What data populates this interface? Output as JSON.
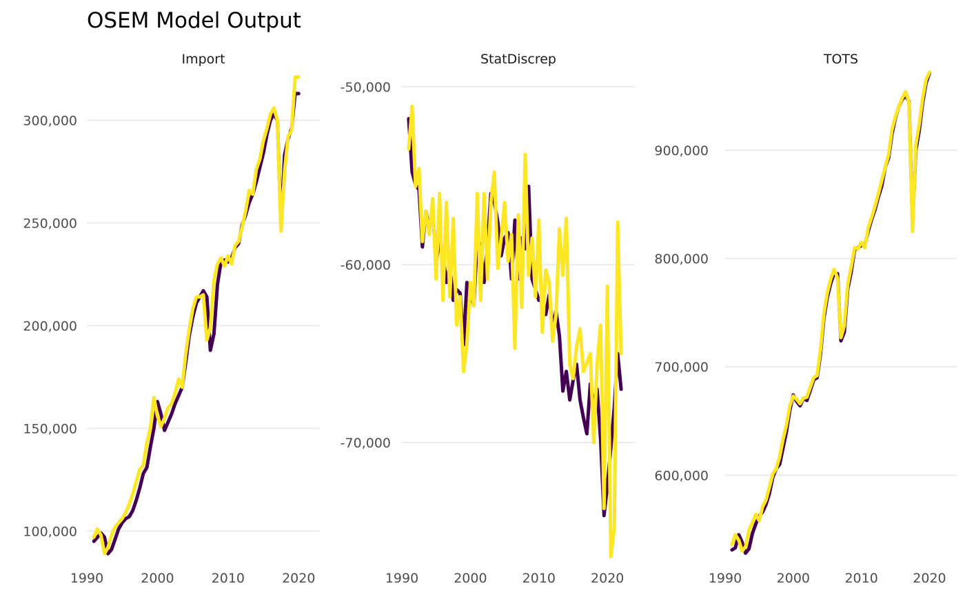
{
  "title": "OSEM Model Output",
  "colors": {
    "actual": "#440154",
    "fitted": "#fde725",
    "grid": "#ebebeb",
    "tick_text": "#4d4d4d"
  },
  "chart_data": [
    {
      "type": "line",
      "facet": "Import",
      "xlim": [
        1990,
        2023
      ],
      "ylim": [
        85000,
        325000
      ],
      "x_ticks": [
        1990,
        2000,
        2010,
        2020
      ],
      "x_tick_labels": [
        "1990",
        "2000",
        "2010",
        "2020"
      ],
      "y_ticks": [
        100000,
        150000,
        200000,
        250000,
        300000
      ],
      "y_tick_labels": [
        "100,000",
        "150,000",
        "200,000",
        "250,000",
        "300,000"
      ],
      "grid": true,
      "legend": "none",
      "x": [
        1991.0,
        1991.5,
        1992.0,
        1992.5,
        1993.0,
        1993.5,
        1994.0,
        1994.5,
        1995.0,
        1995.5,
        1996.0,
        1996.5,
        1997.0,
        1997.5,
        1998.0,
        1998.5,
        1999.0,
        1999.5,
        2000.0,
        2000.5,
        2001.0,
        2001.5,
        2002.0,
        2002.5,
        2003.0,
        2003.5,
        2004.0,
        2004.5,
        2005.0,
        2005.5,
        2006.0,
        2006.5,
        2007.0,
        2007.5,
        2008.0,
        2008.5,
        2009.0,
        2009.5,
        2010.0,
        2010.5,
        2011.0,
        2011.5,
        2012.0,
        2012.5,
        2013.0,
        2013.5,
        2014.0,
        2014.5,
        2015.0,
        2015.5,
        2016.0,
        2016.5,
        2017.0,
        2017.5,
        2018.0,
        2018.5,
        2019.0,
        2019.5,
        2020.0,
        2020.5,
        2021.0,
        2021.5,
        2022.0
      ],
      "series": [
        {
          "name": "",
          "color": "#440154",
          "values": [
            95000,
            97000,
            99000,
            97000,
            89000,
            91000,
            96000,
            101000,
            104000,
            106000,
            107000,
            110000,
            115000,
            121000,
            128000,
            131000,
            141000,
            150000,
            163000,
            157000,
            149000,
            153000,
            157000,
            162000,
            166000,
            170000,
            182000,
            195000,
            204000,
            211000,
            214000,
            217000,
            214000,
            188000,
            196000,
            220000,
            231000,
            232000,
            231000,
            233000,
            238000,
            240000,
            249000,
            254000,
            260000,
            264000,
            270000,
            277000,
            284000,
            293000,
            300000,
            303000,
            300000,
            248000,
            283000,
            291000,
            296000,
            313000,
            313000,
            null,
            null,
            null,
            null
          ]
        },
        {
          "name": "",
          "color": "#fde725",
          "values": [
            97000,
            101000,
            98000,
            89000,
            92000,
            98000,
            102000,
            104000,
            106000,
            109000,
            113000,
            118000,
            124000,
            130000,
            132000,
            143000,
            150000,
            165000,
            156000,
            151000,
            155000,
            160000,
            162000,
            167000,
            174000,
            170000,
            186000,
            198000,
            208000,
            214000,
            214000,
            215000,
            193000,
            199000,
            222000,
            230000,
            233000,
            229000,
            234000,
            230000,
            239000,
            241000,
            248000,
            256000,
            266000,
            264000,
            276000,
            281000,
            290000,
            296000,
            303000,
            306000,
            300000,
            246000,
            275000,
            292000,
            295000,
            321000,
            321000,
            null,
            null,
            null,
            null
          ]
        }
      ]
    },
    {
      "type": "line",
      "facet": "StatDiscrep",
      "xlim": [
        1990,
        2024
      ],
      "ylim": [
        -76700,
        -49000
      ],
      "x_ticks": [
        1990,
        2000,
        2010,
        2020
      ],
      "x_tick_labels": [
        "1990",
        "2000",
        "2010",
        "2020"
      ],
      "y_ticks": [
        -50000,
        -60000,
        -70000
      ],
      "y_tick_labels": [
        "-50,000",
        "-60,000",
        "-70,000"
      ],
      "grid": true,
      "legend": "none",
      "x": [
        1991.0,
        1991.5,
        1992.0,
        1992.5,
        1993.0,
        1993.5,
        1994.0,
        1994.5,
        1995.0,
        1995.5,
        1996.0,
        1996.5,
        1997.0,
        1997.5,
        1998.0,
        1998.5,
        1999.0,
        1999.5,
        2000.0,
        2000.5,
        2001.0,
        2001.5,
        2002.0,
        2002.5,
        2003.0,
        2003.5,
        2004.0,
        2004.5,
        2005.0,
        2005.5,
        2006.0,
        2006.5,
        2007.0,
        2007.5,
        2008.0,
        2008.5,
        2009.0,
        2009.5,
        2010.0,
        2010.5,
        2011.0,
        2011.5,
        2012.0,
        2012.5,
        2013.0,
        2013.5,
        2014.0,
        2014.5,
        2015.0,
        2015.5,
        2016.0,
        2016.5,
        2017.0,
        2017.5,
        2018.0,
        2018.5,
        2019.0,
        2019.5,
        2020.0,
        2020.5,
        2021.0,
        2021.5,
        2022.0
      ],
      "series": [
        {
          "name": "",
          "color": "#440154",
          "values": [
            -51800,
            -54800,
            -55500,
            -55800,
            -59000,
            -57000,
            -58000,
            -56800,
            -60000,
            -58500,
            -59500,
            -61000,
            -60000,
            -62000,
            -61400,
            -61600,
            -64500,
            -61000,
            -61500,
            -62300,
            -58500,
            -59000,
            -61000,
            -58800,
            -56000,
            -56500,
            -57600,
            -59500,
            -58500,
            -58200,
            -60800,
            -57500,
            -60800,
            -58500,
            -59100,
            -55600,
            -60800,
            -61400,
            -62000,
            -61800,
            -62800,
            -61700,
            -63500,
            -62600,
            -64000,
            -67100,
            -66000,
            -67600,
            -66500,
            -65600,
            -67600,
            -68600,
            -69500,
            -66700,
            -67800,
            -67000,
            -69800,
            -74100,
            -72400,
            -70300,
            -68000,
            -65000,
            -67000
          ]
        },
        {
          "name": "",
          "color": "#fde725",
          "values": [
            -53500,
            -51100,
            -55600,
            -54600,
            -58700,
            -57000,
            -58300,
            -56300,
            -60800,
            -56000,
            -62000,
            -56500,
            -61800,
            -57400,
            -63400,
            -61800,
            -66000,
            -64500,
            -61000,
            -62300,
            -56000,
            -62000,
            -56000,
            -60800,
            -56500,
            -54800,
            -60200,
            -58500,
            -56500,
            -59800,
            -58300,
            -64700,
            -57200,
            -62400,
            -53800,
            -60600,
            -58500,
            -61800,
            -57500,
            -63800,
            -60300,
            -61000,
            -64300,
            -62800,
            -58000,
            -60600,
            -57400,
            -65600,
            -66400,
            -64600,
            -63600,
            -66000,
            -65500,
            -65000,
            -70000,
            -65600,
            -63400,
            -73700,
            -61200,
            -76400,
            -74800,
            -57600,
            -65000
          ]
        }
      ]
    },
    {
      "type": "line",
      "facet": "TOTS",
      "xlim": [
        1990,
        2024
      ],
      "ylim": [
        520000,
        975000
      ],
      "x_ticks": [
        1990,
        2000,
        2010,
        2020
      ],
      "x_tick_labels": [
        "1990",
        "2000",
        "2010",
        "2020"
      ],
      "y_ticks": [
        600000,
        700000,
        800000,
        900000
      ],
      "y_tick_labels": [
        "600,000",
        "700,000",
        "800,000",
        "900,000"
      ],
      "grid": true,
      "legend": "none",
      "x": [
        1991.0,
        1991.5,
        1992.0,
        1992.5,
        1993.0,
        1993.5,
        1994.0,
        1994.5,
        1995.0,
        1995.5,
        1996.0,
        1996.5,
        1997.0,
        1997.5,
        1998.0,
        1998.5,
        1999.0,
        1999.5,
        2000.0,
        2000.5,
        2001.0,
        2001.5,
        2002.0,
        2002.5,
        2003.0,
        2003.5,
        2004.0,
        2004.5,
        2005.0,
        2005.5,
        2006.0,
        2006.5,
        2007.0,
        2007.5,
        2008.0,
        2008.5,
        2009.0,
        2009.5,
        2010.0,
        2010.5,
        2011.0,
        2011.5,
        2012.0,
        2012.5,
        2013.0,
        2013.5,
        2014.0,
        2014.5,
        2015.0,
        2015.5,
        2016.0,
        2016.5,
        2017.0,
        2017.5,
        2018.0,
        2018.5,
        2019.0,
        2019.5,
        2020.0,
        2020.5,
        2021.0,
        2021.5,
        2022.0
      ],
      "series": [
        {
          "name": "",
          "color": "#440154",
          "values": [
            531000,
            533000,
            545000,
            538000,
            528000,
            532000,
            546000,
            555000,
            562000,
            566000,
            573000,
            583000,
            598000,
            606000,
            610000,
            625000,
            640000,
            660000,
            674000,
            668000,
            664000,
            671000,
            669000,
            678000,
            688000,
            690000,
            712000,
            745000,
            764000,
            777000,
            786000,
            786000,
            724000,
            732000,
            772000,
            787000,
            808000,
            810000,
            812000,
            812000,
            825000,
            836000,
            845000,
            857000,
            867000,
            884000,
            893000,
            915000,
            930000,
            940000,
            947000,
            950000,
            945000,
            830000,
            900000,
            918000,
            944000,
            962000,
            971000,
            null,
            null,
            null,
            null
          ]
        },
        {
          "name": "",
          "color": "#fde725",
          "values": [
            536000,
            545000,
            540000,
            530000,
            534000,
            549000,
            556000,
            564000,
            558000,
            571000,
            577000,
            589000,
            601000,
            606000,
            617000,
            633000,
            646000,
            664000,
            673000,
            670000,
            666000,
            671000,
            672000,
            681000,
            690000,
            692000,
            716000,
            749000,
            768000,
            781000,
            790000,
            782000,
            727000,
            738000,
            776000,
            792000,
            810000,
            809000,
            815000,
            810000,
            828000,
            838000,
            848000,
            860000,
            872000,
            884000,
            896000,
            919000,
            931000,
            940000,
            948000,
            954000,
            944000,
            825000,
            905000,
            924000,
            948000,
            965000,
            972000,
            null,
            null,
            null,
            null
          ]
        }
      ]
    }
  ]
}
